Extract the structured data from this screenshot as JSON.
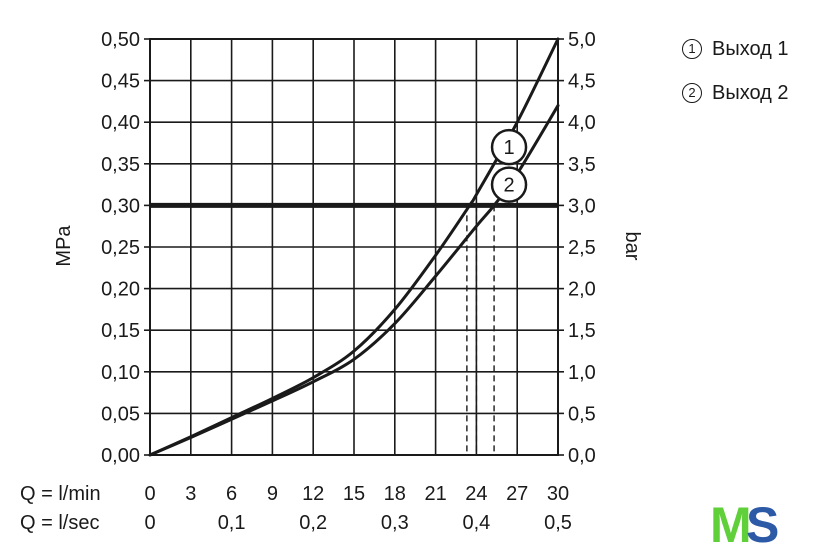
{
  "chart_data": {
    "type": "line",
    "y_left": {
      "label": "MPa",
      "ticks": [
        "0,00",
        "0,05",
        "0,10",
        "0,15",
        "0,20",
        "0,25",
        "0,30",
        "0,35",
        "0,40",
        "0,45",
        "0,50"
      ],
      "range": [
        0,
        0.5
      ]
    },
    "y_right": {
      "label": "bar",
      "ticks": [
        "0,0",
        "0,5",
        "1,0",
        "1,5",
        "2,0",
        "2,5",
        "3,0",
        "3,5",
        "4,0",
        "4,5",
        "5,0"
      ],
      "range": [
        0,
        5.0
      ]
    },
    "x_rows": [
      {
        "label": "Q = l/min",
        "range": [
          0,
          30
        ],
        "ticks": [
          {
            "v": 0,
            "t": "0"
          },
          {
            "v": 3,
            "t": "3"
          },
          {
            "v": 6,
            "t": "6"
          },
          {
            "v": 9,
            "t": "9"
          },
          {
            "v": 12,
            "t": "12"
          },
          {
            "v": 15,
            "t": "15"
          },
          {
            "v": 18,
            "t": "18"
          },
          {
            "v": 21,
            "t": "21"
          },
          {
            "v": 24,
            "t": "24"
          },
          {
            "v": 27,
            "t": "27"
          },
          {
            "v": 30,
            "t": "30"
          }
        ]
      },
      {
        "label": "Q = l/sec",
        "range": [
          0,
          0.5
        ],
        "ticks": [
          {
            "v": 0,
            "t": "0"
          },
          {
            "v": 0.1,
            "t": "0,1"
          },
          {
            "v": 0.2,
            "t": "0,2"
          },
          {
            "v": 0.3,
            "t": "0,3"
          },
          {
            "v": 0.4,
            "t": "0,4"
          },
          {
            "v": 0.5,
            "t": "0,5"
          }
        ]
      }
    ],
    "grid": true,
    "series": [
      {
        "name": "1",
        "x": [
          0,
          3,
          6,
          9,
          12,
          15,
          18,
          21,
          23.5,
          24,
          27,
          30
        ],
        "y": [
          0,
          0.022,
          0.045,
          0.068,
          0.093,
          0.125,
          0.175,
          0.24,
          0.3,
          0.313,
          0.4,
          0.5
        ]
      },
      {
        "name": "2",
        "x": [
          0,
          3,
          6,
          9,
          12,
          15,
          18,
          21,
          24,
          25.3,
          27,
          30
        ],
        "y": [
          0,
          0.021,
          0.043,
          0.065,
          0.088,
          0.115,
          0.158,
          0.215,
          0.275,
          0.3,
          0.338,
          0.42
        ]
      }
    ],
    "reference_line": {
      "y": 0.3
    },
    "drop_lines": [
      23.3,
      24,
      25.3
    ],
    "legend": {
      "position": "top-right",
      "items": [
        {
          "marker": "1",
          "label": "Выход 1"
        },
        {
          "marker": "2",
          "label": "Выход 2"
        }
      ]
    },
    "series_markers": [
      "1",
      "2"
    ]
  },
  "logo": {
    "text_m": "M",
    "text_s": "S",
    "color_m": "#5fcf3a",
    "color_s": "#2d5aa6"
  }
}
